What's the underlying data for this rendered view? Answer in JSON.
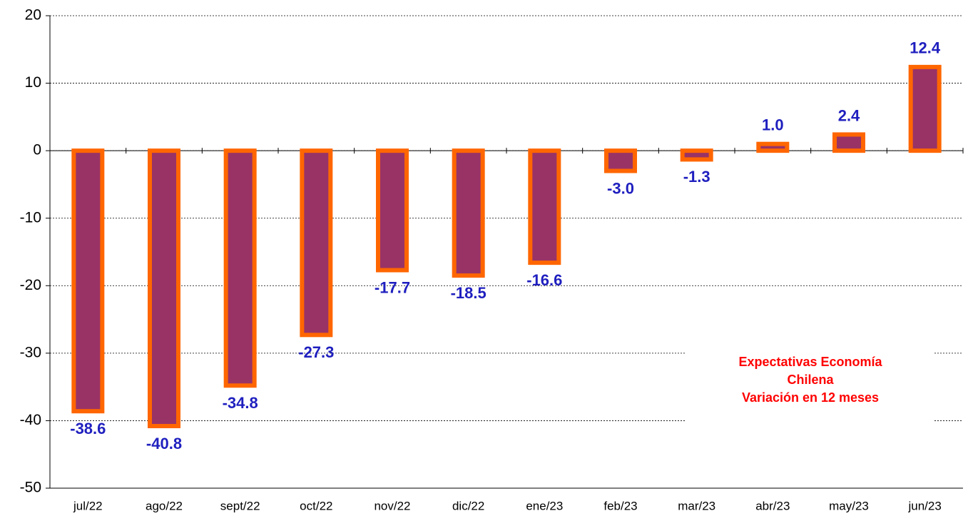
{
  "chart_data": {
    "type": "bar",
    "categories": [
      "jul/22",
      "ago/22",
      "sept/22",
      "oct/22",
      "nov/22",
      "dic/22",
      "ene/23",
      "feb/23",
      "mar/23",
      "abr/23",
      "may/23",
      "jun/23"
    ],
    "values": [
      -38.6,
      -40.8,
      -34.8,
      -27.3,
      -17.7,
      -18.5,
      -16.6,
      -3.0,
      -1.3,
      1.0,
      2.4,
      12.4
    ],
    "value_labels": [
      "-38.6",
      "-40.8",
      "-34.8",
      "-27.3",
      "-17.7",
      "-18.5",
      "-16.6",
      "-3.0",
      "-1.3",
      "1.0",
      "2.4",
      "12.4"
    ],
    "color": "#993366",
    "edge_color": "#ff6600",
    "ylim": [
      -50,
      20
    ],
    "yticks": [
      -50,
      -40,
      -30,
      -20,
      -10,
      0,
      10,
      20
    ],
    "grid": true,
    "annotation": [
      "Expectativas Economía",
      "Chilena",
      "Variación  en 12 meses"
    ]
  }
}
